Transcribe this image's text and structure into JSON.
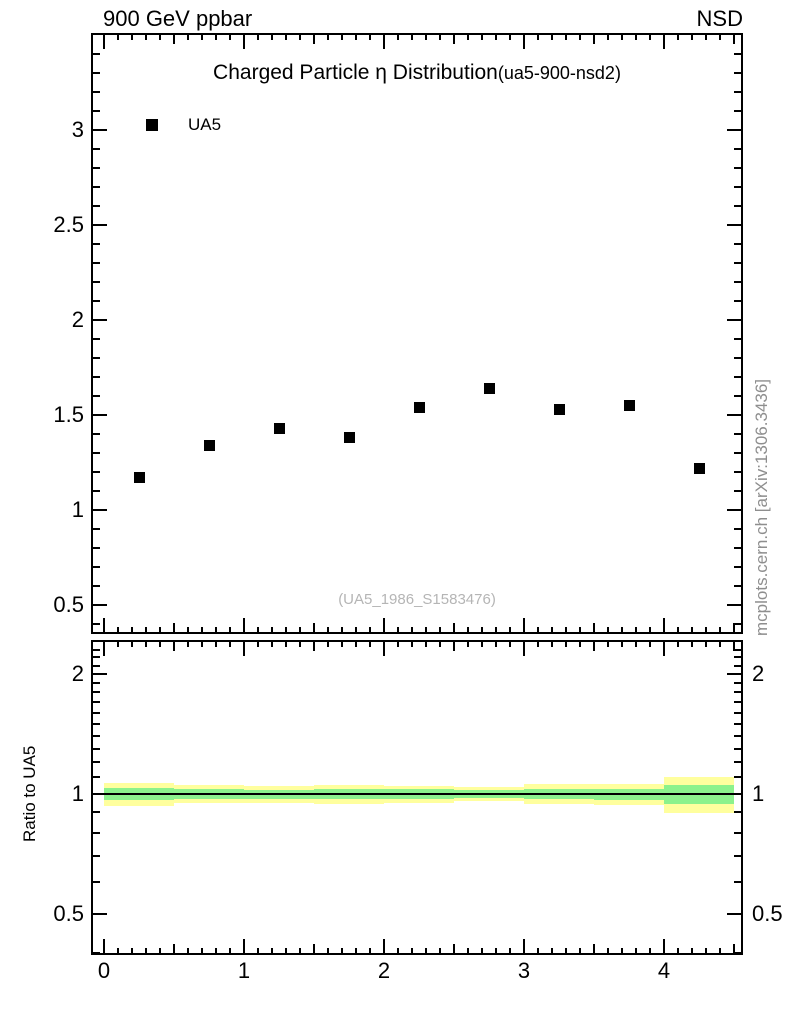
{
  "header": {
    "left": "900 GeV ppbar",
    "right": "NSD"
  },
  "watermark": "(UA5_1986_S1583476)",
  "side_label": "mcplots.cern.ch [arXiv:1306.3436]",
  "colors": {
    "band_yellow": "#ffff9e",
    "band_green": "#8cf28c",
    "marker": "#000000",
    "frame": "#000000",
    "watermark_text": "#b5b5b5",
    "side_label_text": "#8e8e8e"
  },
  "chart_data": [
    {
      "type": "scatter",
      "title": "Charged Particle η Distribution",
      "subtitle": "(ua5-900-nsd2)",
      "xlabel": "",
      "ylabel": "",
      "xlim": [
        -0.09,
        4.56
      ],
      "ylim": [
        0.35,
        3.51
      ],
      "xticks": [
        0,
        1,
        2,
        3,
        4
      ],
      "yticks": [
        0.5,
        1,
        1.5,
        2,
        2.5,
        3
      ],
      "grid": false,
      "legend_position": "top-left",
      "series": [
        {
          "name": "UA5",
          "marker": "filled-square",
          "color": "#000000",
          "x": [
            0.25,
            0.75,
            1.25,
            1.75,
            2.25,
            2.75,
            3.25,
            3.75,
            4.25
          ],
          "y": [
            1.17,
            1.34,
            1.43,
            1.38,
            1.54,
            1.64,
            1.53,
            1.55,
            1.22
          ]
        }
      ]
    },
    {
      "type": "area",
      "name": "ratio-panel",
      "ylabel": "Ratio to UA5",
      "yscale": "log",
      "xlim": [
        -0.09,
        4.56
      ],
      "ylim": [
        0.39,
        2.43
      ],
      "xticks": [
        0,
        1,
        2,
        3,
        4
      ],
      "yticks": [
        0.5,
        1,
        2
      ],
      "reference_line": 1,
      "bands": [
        {
          "x0": 0.0,
          "x1": 0.5,
          "yellow": 0.068,
          "green": 0.035
        },
        {
          "x0": 0.5,
          "x1": 1.0,
          "yellow": 0.052,
          "green": 0.028
        },
        {
          "x0": 1.0,
          "x1": 1.5,
          "yellow": 0.048,
          "green": 0.026
        },
        {
          "x0": 1.5,
          "x1": 2.0,
          "yellow": 0.055,
          "green": 0.03
        },
        {
          "x0": 2.0,
          "x1": 2.5,
          "yellow": 0.05,
          "green": 0.028
        },
        {
          "x0": 2.5,
          "x1": 3.0,
          "yellow": 0.042,
          "green": 0.024
        },
        {
          "x0": 3.0,
          "x1": 3.5,
          "yellow": 0.058,
          "green": 0.031
        },
        {
          "x0": 3.5,
          "x1": 4.0,
          "yellow": 0.062,
          "green": 0.032
        },
        {
          "x0": 4.0,
          "x1": 4.5,
          "yellow": 0.105,
          "green": 0.055
        }
      ]
    }
  ]
}
